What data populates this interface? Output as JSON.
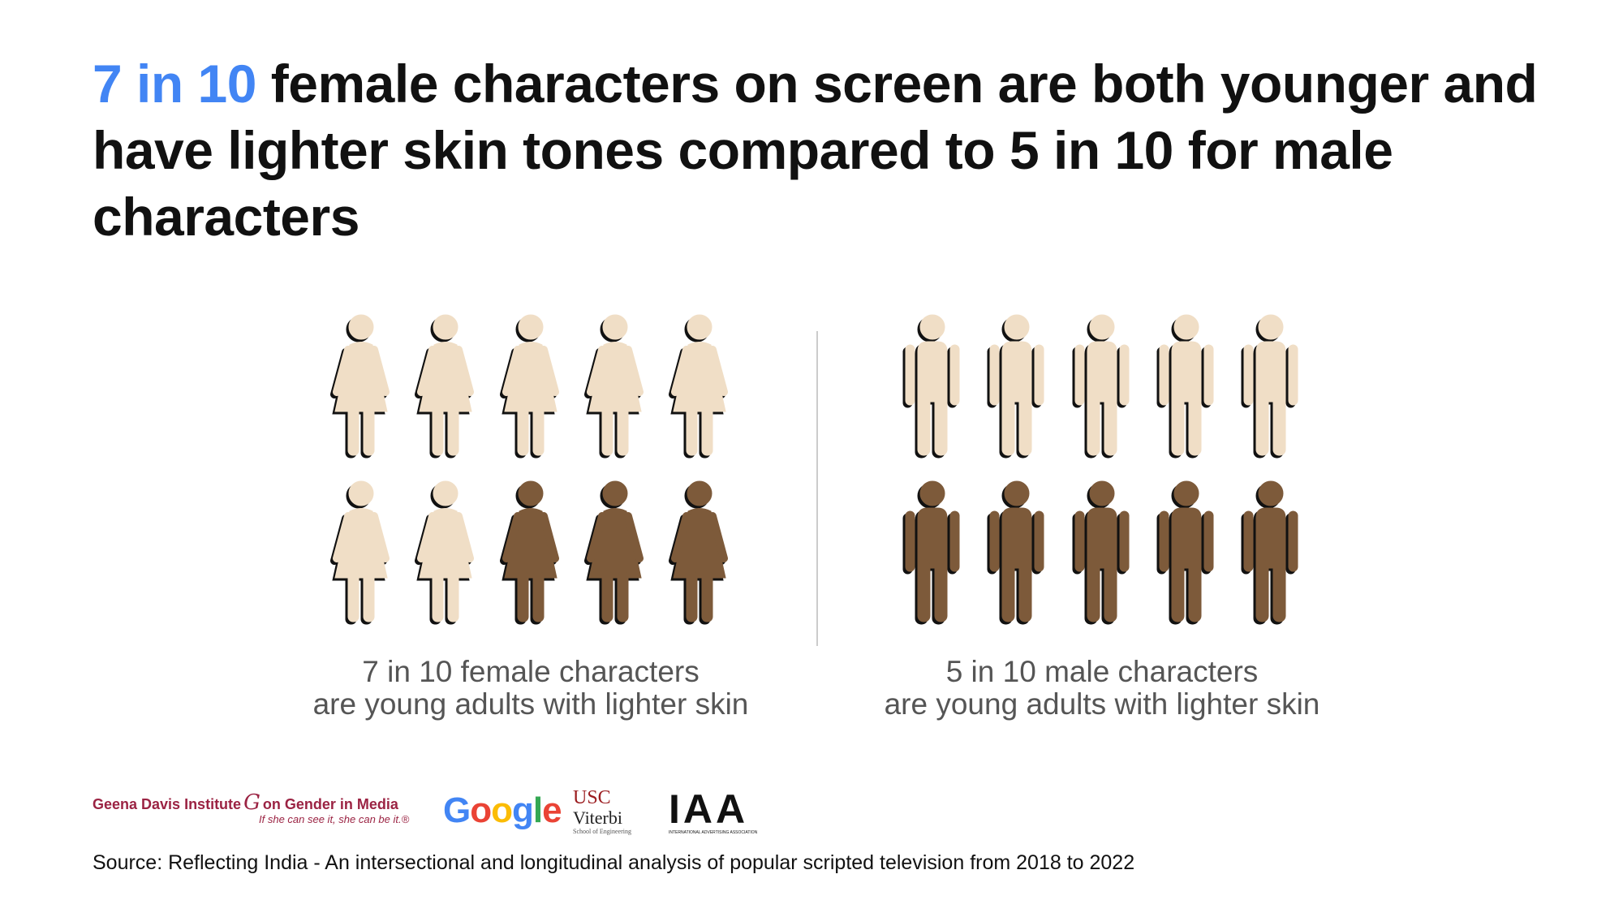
{
  "title": {
    "highlight": "7 in 10",
    "rest": " female characters on screen are both younger and have lighter skin tones compared to 5 in 10 for male characters"
  },
  "colors": {
    "highlight": "#4285f4",
    "lighter_skin": "#f0dec6",
    "darker_skin": "#7d5a3a"
  },
  "chart_data": {
    "type": "pictogram",
    "groups": [
      {
        "figure": "woman-icon",
        "total": 10,
        "lighter_skin_young": 7,
        "caption_line1": "7 in 10 female characters",
        "caption_line2": "are young adults with lighter skin"
      },
      {
        "figure": "man-icon",
        "total": 10,
        "lighter_skin_young": 5,
        "caption_line1": "5 in 10 male characters",
        "caption_line2": "are young adults with lighter skin"
      }
    ]
  },
  "logos": {
    "geena_davis": "Geena Davis Institute",
    "geena_davis_2": "on Gender in Media",
    "geena_davis_tagline": "If she can see it, she can be it.®",
    "google": "Google",
    "usc": "USC",
    "usc_2": "Viterbi",
    "usc_3": "School of Engineering",
    "iaa": "IAA",
    "iaa_2": "INTERNATIONAL ADVERTISING ASSOCIATION"
  },
  "source": "Source: Reflecting India - An intersectional and longitudinal analysis of popular scripted television from 2018 to 2022"
}
